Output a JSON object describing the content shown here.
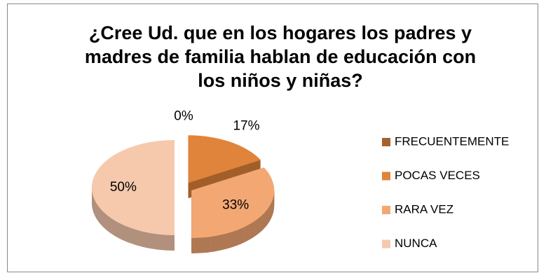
{
  "chart_data": {
    "type": "pie",
    "title": "¿Cree Ud. que en los hogares los padres y madres de familia hablan de educación con los niños y niñas?",
    "categories": [
      "FRECUENTEMENTE",
      "POCAS VECES",
      "RARA VEZ",
      "NUNCA"
    ],
    "values": [
      0,
      17,
      33,
      50
    ],
    "value_labels": [
      "0%",
      "17%",
      "33%",
      "50%"
    ],
    "colors": [
      "#a4622f",
      "#e0843b",
      "#f3a874",
      "#f6c9ad"
    ],
    "legend": "right"
  }
}
